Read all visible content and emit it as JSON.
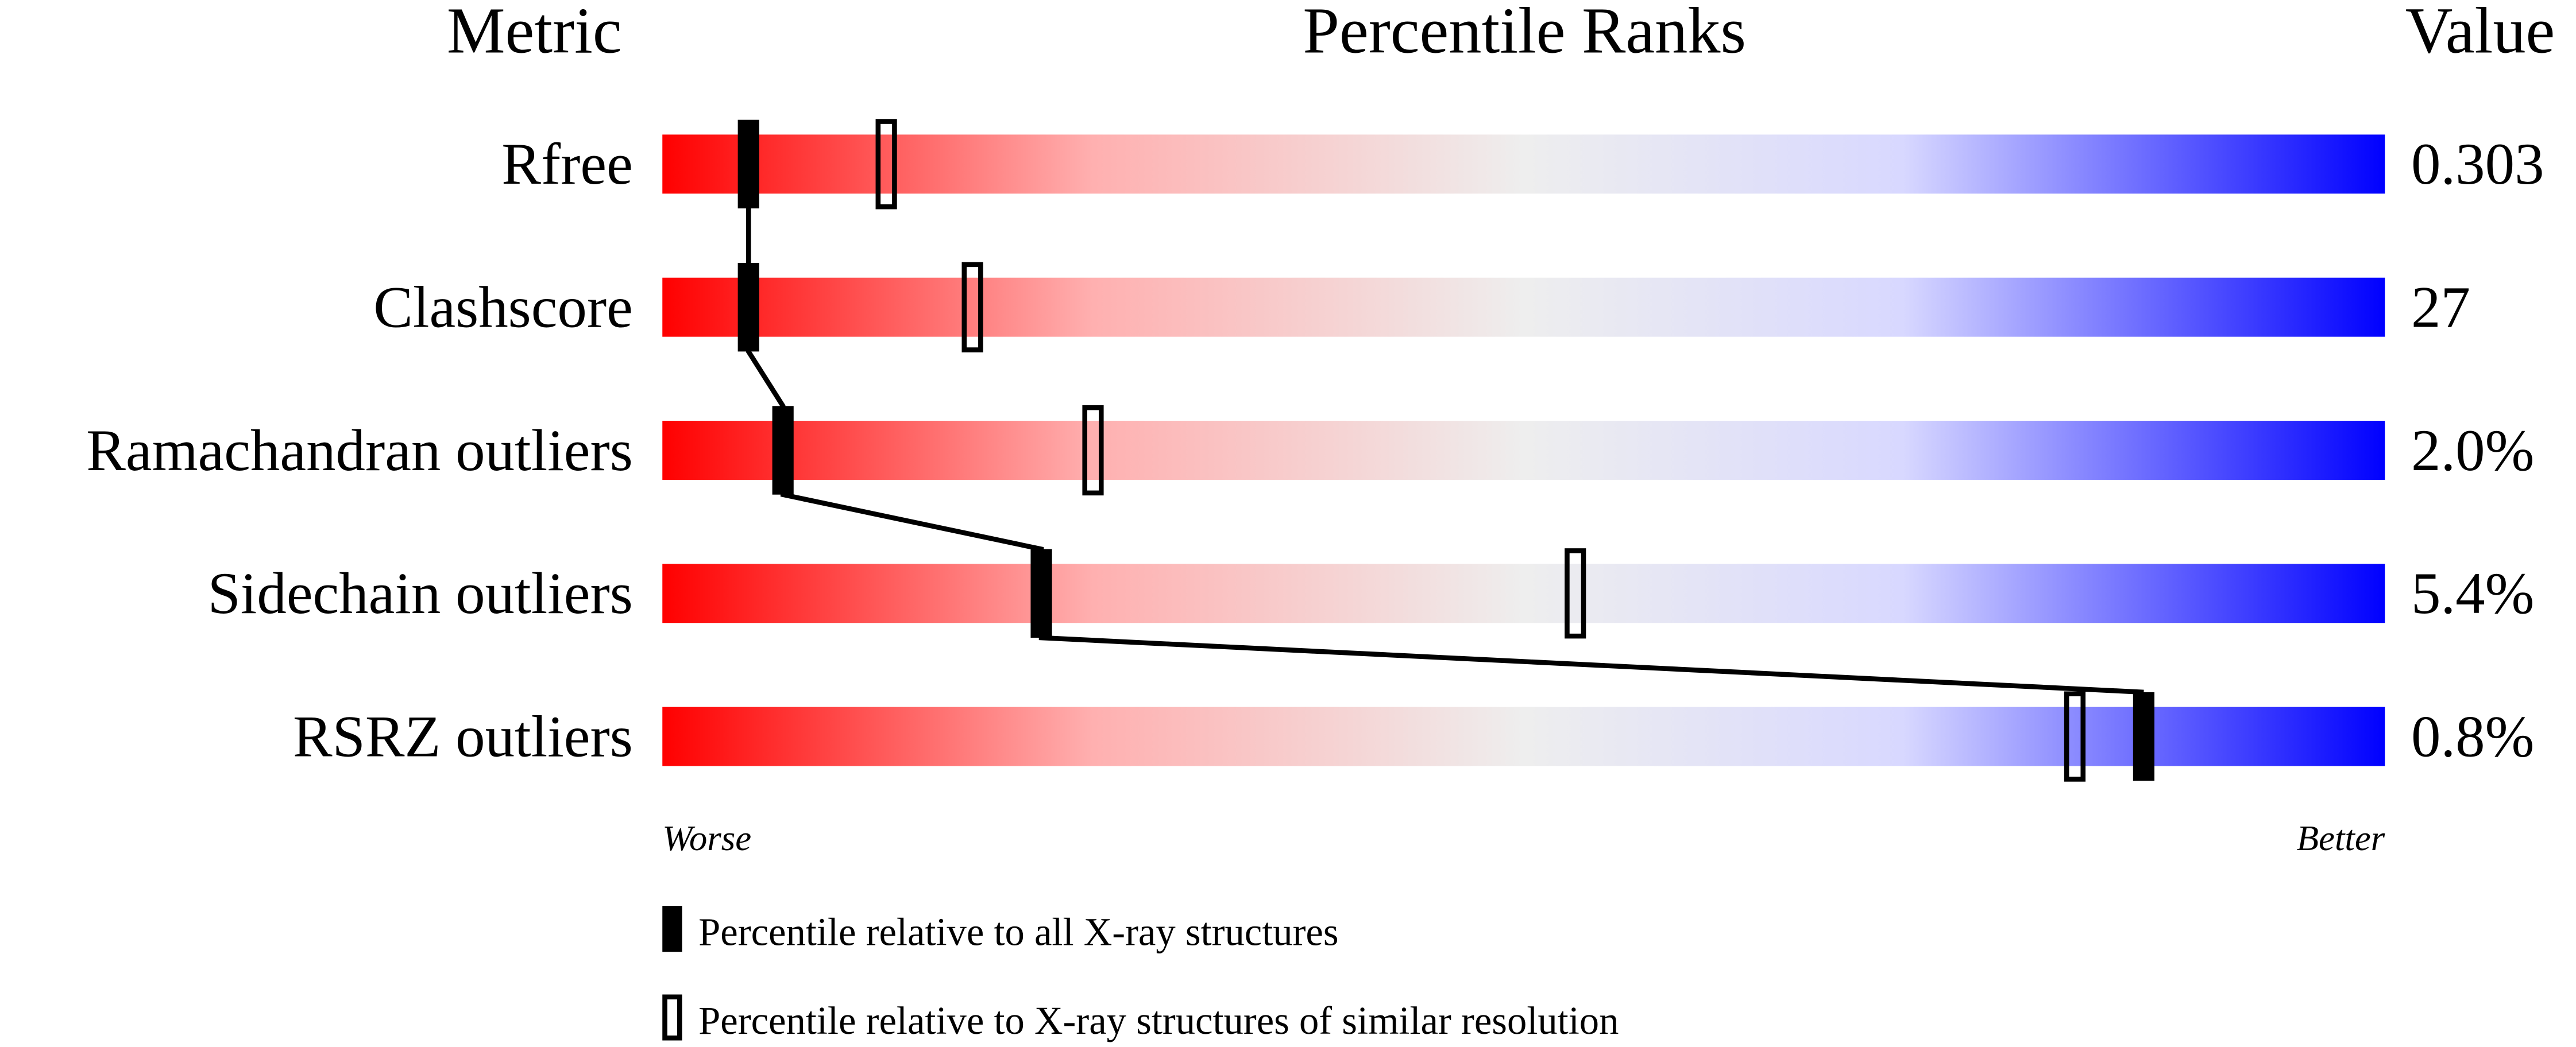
{
  "chart_data": {
    "type": "percentile-slider",
    "headers": {
      "metric": "Metric",
      "ranks": "Percentile Ranks",
      "value": "Value"
    },
    "xlim": [
      0,
      100
    ],
    "gradient_colors": [
      "#ff0000",
      "#eeeeee",
      "#0000ff"
    ],
    "metrics": [
      {
        "name": "Rfree",
        "value": "0.303",
        "percentile_all": 5,
        "percentile_similar": 13
      },
      {
        "name": "Clashscore",
        "value": "27",
        "percentile_all": 5,
        "percentile_similar": 18
      },
      {
        "name": "Ramachandran outliers",
        "value": "2.0%",
        "percentile_all": 7,
        "percentile_similar": 25
      },
      {
        "name": "Sidechain outliers",
        "value": "5.4%",
        "percentile_all": 22,
        "percentile_similar": 53
      },
      {
        "name": "RSRZ outliers",
        "value": "0.8%",
        "percentile_all": 86,
        "percentile_similar": 82
      }
    ],
    "axis": {
      "left": "Worse",
      "right": "Better"
    },
    "legend": {
      "all": "Percentile relative to all X-ray structures",
      "similar": "Percentile relative to X-ray structures of similar resolution"
    }
  }
}
